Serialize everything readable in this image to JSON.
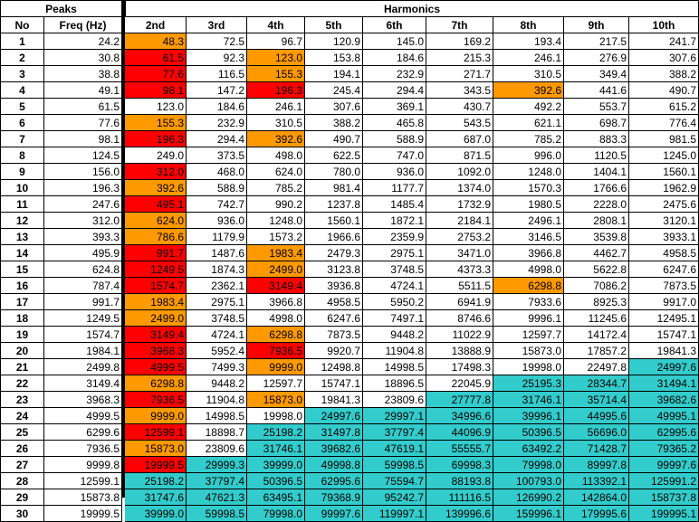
{
  "headers": {
    "peaks": "Peaks",
    "harmonics": "Harmonics",
    "no": "No",
    "freq": "Freq (Hz)",
    "harmonic_cols": [
      "2nd",
      "3rd",
      "4th",
      "5th",
      "6th",
      "7th",
      "8th",
      "9th",
      "10th"
    ]
  },
  "colors": {
    "red": "#ff0000",
    "orange": "#ff9900",
    "teal": "#33cccc",
    "white": "#ffffff"
  },
  "legend_codes": {
    "r": "red",
    "o": "orange",
    "t": "teal",
    "w": "white"
  },
  "rows": [
    {
      "no": "1",
      "freq": "24.2",
      "h": [
        "48.3",
        "72.5",
        "96.7",
        "120.9",
        "145.0",
        "169.2",
        "193.4",
        "217.5",
        "241.7"
      ],
      "c": "owwwwwwww"
    },
    {
      "no": "2",
      "freq": "30.8",
      "h": [
        "61.5",
        "92.3",
        "123.0",
        "153.8",
        "184.6",
        "215.3",
        "246.1",
        "276.9",
        "307.6"
      ],
      "c": "rwowwwwww"
    },
    {
      "no": "3",
      "freq": "38.8",
      "h": [
        "77.6",
        "116.5",
        "155.3",
        "194.1",
        "232.9",
        "271.7",
        "310.5",
        "349.4",
        "388.2"
      ],
      "c": "rwowwwwww"
    },
    {
      "no": "4",
      "freq": "49.1",
      "h": [
        "98.1",
        "147.2",
        "196.3",
        "245.4",
        "294.4",
        "343.5",
        "392.6",
        "441.6",
        "490.7"
      ],
      "c": "rwrwwwoww"
    },
    {
      "no": "5",
      "freq": "61.5",
      "h": [
        "123.0",
        "184.6",
        "246.1",
        "307.6",
        "369.1",
        "430.7",
        "492.2",
        "553.7",
        "615.2"
      ],
      "c": "wwwwwwwww"
    },
    {
      "no": "6",
      "freq": "77.6",
      "h": [
        "155.3",
        "232.9",
        "310.5",
        "388.2",
        "465.8",
        "543.5",
        "621.1",
        "698.7",
        "776.4"
      ],
      "c": "owwwwwwww"
    },
    {
      "no": "7",
      "freq": "98.1",
      "h": [
        "196.3",
        "294.4",
        "392.6",
        "490.7",
        "588.9",
        "687.0",
        "785.2",
        "883.3",
        "981.5"
      ],
      "c": "rwowwwwww"
    },
    {
      "no": "8",
      "freq": "124.5",
      "h": [
        "249.0",
        "373.5",
        "498.0",
        "622.5",
        "747.0",
        "871.5",
        "996.0",
        "1120.5",
        "1245.0"
      ],
      "c": "wwwwwwwww"
    },
    {
      "no": "9",
      "freq": "156.0",
      "h": [
        "312.0",
        "468.0",
        "624.0",
        "780.0",
        "936.0",
        "1092.0",
        "1248.0",
        "1404.1",
        "1560.1"
      ],
      "c": "rwwwwwwww"
    },
    {
      "no": "10",
      "freq": "196.3",
      "h": [
        "392.6",
        "588.9",
        "785.2",
        "981.4",
        "1177.7",
        "1374.0",
        "1570.3",
        "1766.6",
        "1962.9"
      ],
      "c": "owwwwwwww"
    },
    {
      "no": "11",
      "freq": "247.6",
      "h": [
        "495.1",
        "742.7",
        "990.2",
        "1237.8",
        "1485.4",
        "1732.9",
        "1980.5",
        "2228.0",
        "2475.6"
      ],
      "c": "rwwwwwwww"
    },
    {
      "no": "12",
      "freq": "312.0",
      "h": [
        "624.0",
        "936.0",
        "1248.0",
        "1560.1",
        "1872.1",
        "2184.1",
        "2496.1",
        "2808.1",
        "3120.1"
      ],
      "c": "owwwwwwww"
    },
    {
      "no": "13",
      "freq": "393.3",
      "h": [
        "786.6",
        "1179.9",
        "1573.2",
        "1966.6",
        "2359.9",
        "2753.2",
        "3146.5",
        "3539.8",
        "3933.1"
      ],
      "c": "owwwwwwww"
    },
    {
      "no": "14",
      "freq": "495.9",
      "h": [
        "991.7",
        "1487.6",
        "1983.4",
        "2479.3",
        "2975.1",
        "3471.0",
        "3966.8",
        "4462.7",
        "4958.5"
      ],
      "c": "rwowwwwww"
    },
    {
      "no": "15",
      "freq": "624.8",
      "h": [
        "1249.5",
        "1874.3",
        "2499.0",
        "3123.8",
        "3748.5",
        "4373.3",
        "4998.0",
        "5622.8",
        "6247.6"
      ],
      "c": "rwowwwwww"
    },
    {
      "no": "16",
      "freq": "787.4",
      "h": [
        "1574.7",
        "2362.1",
        "3149.4",
        "3936.8",
        "4724.1",
        "5511.5",
        "6298.8",
        "7086.2",
        "7873.5"
      ],
      "c": "rwrwwwoww"
    },
    {
      "no": "17",
      "freq": "991.7",
      "h": [
        "1983.4",
        "2975.1",
        "3966.8",
        "4958.5",
        "5950.2",
        "6941.9",
        "7933.6",
        "8925.3",
        "9917.0"
      ],
      "c": "owwwwwwww"
    },
    {
      "no": "18",
      "freq": "1249.5",
      "h": [
        "2499.0",
        "3748.5",
        "4998.0",
        "6247.6",
        "7497.1",
        "8746.6",
        "9996.1",
        "11245.6",
        "12495.1"
      ],
      "c": "owwwwwwww"
    },
    {
      "no": "19",
      "freq": "1574.7",
      "h": [
        "3149.4",
        "4724.1",
        "6298.8",
        "7873.5",
        "9448.2",
        "11022.9",
        "12597.7",
        "14172.4",
        "15747.1"
      ],
      "c": "rwowwwwww"
    },
    {
      "no": "20",
      "freq": "1984.1",
      "h": [
        "3968.3",
        "5952.4",
        "7936.5",
        "9920.7",
        "11904.8",
        "13888.9",
        "15873.0",
        "17857.2",
        "19841.3"
      ],
      "c": "rwrwwwwww"
    },
    {
      "no": "21",
      "freq": "2499.8",
      "h": [
        "4999.5",
        "7499.3",
        "9999.0",
        "12498.8",
        "14998.5",
        "17498.3",
        "19998.0",
        "22497.8",
        "24997.6"
      ],
      "c": "rwowwwwwt"
    },
    {
      "no": "22",
      "freq": "3149.4",
      "h": [
        "6298.8",
        "9448.2",
        "12597.7",
        "15747.1",
        "18896.5",
        "22045.9",
        "25195.3",
        "28344.7",
        "31494.1"
      ],
      "c": "owwwwwttt"
    },
    {
      "no": "23",
      "freq": "3968.3",
      "h": [
        "7936.5",
        "11904.8",
        "15873.0",
        "19841.3",
        "23809.6",
        "27777.8",
        "31746.1",
        "35714.4",
        "39682.6"
      ],
      "c": "rwowwtttt"
    },
    {
      "no": "24",
      "freq": "4999.5",
      "h": [
        "9999.0",
        "14998.5",
        "19998.0",
        "24997.6",
        "29997.1",
        "34996.6",
        "39996.1",
        "44995.6",
        "49995.1"
      ],
      "c": "owwtttttt"
    },
    {
      "no": "25",
      "freq": "6299.6",
      "h": [
        "12599.1",
        "18898.7",
        "25198.2",
        "31497.8",
        "37797.4",
        "44096.9",
        "50396.5",
        "56696.0",
        "62995.6"
      ],
      "c": "rwttttttt"
    },
    {
      "no": "26",
      "freq": "7936.5",
      "h": [
        "15873.0",
        "23809.6",
        "31746.1",
        "39682.6",
        "47619.1",
        "55555.7",
        "63492.2",
        "71428.7",
        "79365.2"
      ],
      "c": "owttttttt"
    },
    {
      "no": "27",
      "freq": "9999.8",
      "h": [
        "19999.5",
        "29999.3",
        "39999.0",
        "49998.8",
        "59998.5",
        "69998.3",
        "79998.0",
        "89997.8",
        "99997.6"
      ],
      "c": "rtttttttt"
    },
    {
      "no": "28",
      "freq": "12599.1",
      "h": [
        "25198.2",
        "37797.4",
        "50396.5",
        "62995.6",
        "75594.7",
        "88193.8",
        "100793.0",
        "113392.1",
        "125991.2"
      ],
      "c": "ttttttttt"
    },
    {
      "no": "29",
      "freq": "15873.8",
      "h": [
        "31747.6",
        "47621.3",
        "63495.1",
        "79368.9",
        "95242.7",
        "111116.5",
        "126990.2",
        "142864.0",
        "158737.8"
      ],
      "c": "ttttttttt"
    },
    {
      "no": "30",
      "freq": "19999.5",
      "h": [
        "39999.0",
        "59998.5",
        "79998.0",
        "99997.6",
        "119997.1",
        "139996.6",
        "159996.1",
        "179995.6",
        "199995.1"
      ],
      "c": "ttttttttt"
    }
  ]
}
